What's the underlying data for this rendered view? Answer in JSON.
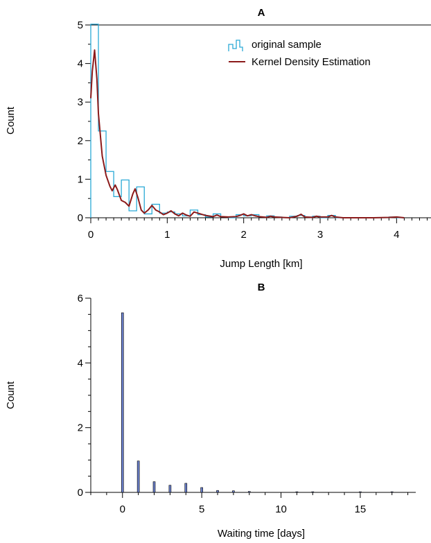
{
  "chart_data": [
    {
      "panel": "A",
      "type": "line",
      "title": "A",
      "xlabel": "Jump Length [km]",
      "ylabel": "Count",
      "xlim": [
        0,
        4.45
      ],
      "ylim": [
        0,
        5
      ],
      "xticks": [
        "0",
        "1",
        "2",
        "3",
        "4"
      ],
      "yticks": [
        "0",
        "1",
        "2",
        "3",
        "4",
        "5"
      ],
      "grid": false,
      "legend_position": "top-right",
      "series": [
        {
          "name": "original sample",
          "style": "step",
          "color": "#29a9d6",
          "bin_width": 0.1,
          "x": [
            0,
            0.1,
            0.2,
            0.3,
            0.4,
            0.5,
            0.6,
            0.7,
            0.8,
            0.9,
            1.0,
            1.1,
            1.2,
            1.3,
            1.4,
            1.5,
            1.6,
            1.7,
            1.8,
            1.9,
            2.0,
            2.1,
            2.2,
            2.3,
            2.4,
            2.5,
            2.6,
            2.7,
            2.8,
            2.9,
            3.0,
            3.1,
            3.2,
            3.3,
            3.4,
            3.5,
            3.6,
            3.7,
            3.8,
            3.9,
            4.0
          ],
          "values": [
            5.02,
            2.25,
            1.2,
            0.55,
            0.98,
            0.18,
            0.8,
            0.1,
            0.35,
            0.12,
            0.15,
            0.1,
            0.05,
            0.2,
            0.08,
            0.02,
            0.1,
            0.02,
            0.0,
            0.08,
            0.05,
            0.08,
            0.02,
            0.05,
            0.02,
            0.0,
            0.04,
            0.06,
            0.02,
            0.04,
            0.0,
            0.06,
            0.0,
            0.0,
            0.0,
            0.0,
            0.0,
            0.0,
            0.0,
            0.02,
            0.0
          ]
        },
        {
          "name": "Kernel Density Estimation",
          "style": "line",
          "color": "#8b1a1a",
          "x": [
            0,
            0.02,
            0.05,
            0.08,
            0.1,
            0.15,
            0.2,
            0.25,
            0.28,
            0.32,
            0.35,
            0.4,
            0.45,
            0.5,
            0.55,
            0.58,
            0.62,
            0.66,
            0.7,
            0.75,
            0.8,
            0.85,
            0.9,
            0.95,
            1.0,
            1.05,
            1.1,
            1.15,
            1.2,
            1.25,
            1.3,
            1.35,
            1.4,
            1.5,
            1.6,
            1.65,
            1.7,
            1.8,
            1.9,
            1.95,
            2.0,
            2.05,
            2.1,
            2.15,
            2.2,
            2.3,
            2.35,
            2.4,
            2.5,
            2.6,
            2.7,
            2.75,
            2.8,
            2.9,
            2.95,
            3.0,
            3.1,
            3.15,
            3.2,
            3.3,
            3.5,
            3.7,
            3.9,
            4.0,
            4.1
          ],
          "values": [
            3.1,
            3.8,
            4.35,
            3.6,
            2.7,
            1.6,
            1.1,
            0.82,
            0.7,
            0.85,
            0.72,
            0.45,
            0.4,
            0.3,
            0.62,
            0.75,
            0.5,
            0.2,
            0.12,
            0.2,
            0.32,
            0.2,
            0.15,
            0.08,
            0.12,
            0.18,
            0.1,
            0.05,
            0.12,
            0.07,
            0.04,
            0.15,
            0.12,
            0.06,
            0.03,
            0.07,
            0.03,
            0.02,
            0.03,
            0.06,
            0.1,
            0.05,
            0.08,
            0.05,
            0.03,
            0.01,
            0.04,
            0.02,
            0.01,
            0.0,
            0.04,
            0.09,
            0.02,
            0.01,
            0.04,
            0.02,
            0.02,
            0.06,
            0.02,
            0.0,
            0.0,
            0.0,
            0.01,
            0.02,
            0.0
          ]
        }
      ]
    },
    {
      "panel": "B",
      "type": "bar",
      "title": "B",
      "xlabel": "Waiting time [days]",
      "ylabel": "Count",
      "xlim": [
        -2,
        18.5
      ],
      "ylim": [
        0,
        6
      ],
      "xticks": [
        "0",
        "5",
        "10",
        "15"
      ],
      "yticks": [
        "0",
        "2",
        "4",
        "6"
      ],
      "grid": false,
      "bar_color": "#6a7fc9",
      "x": [
        0,
        1,
        2,
        3,
        4,
        5,
        6,
        7,
        8,
        11,
        12,
        15,
        17
      ],
      "values": [
        5.55,
        0.97,
        0.33,
        0.22,
        0.28,
        0.15,
        0.06,
        0.05,
        0.03,
        0.02,
        0.02,
        0.02,
        0.02
      ]
    }
  ]
}
